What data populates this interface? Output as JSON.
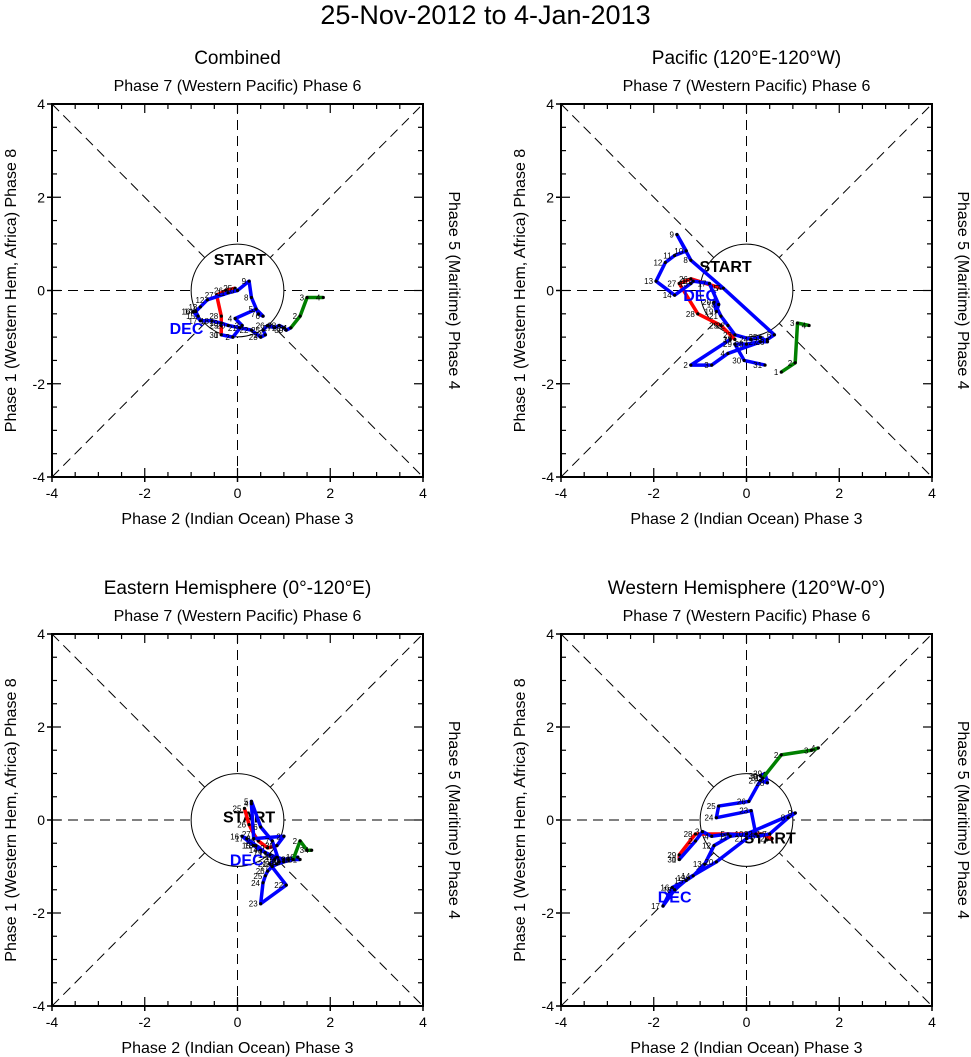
{
  "figure": {
    "title": "25-Nov-2012 to 4-Jan-2013",
    "start_label": "START",
    "month_label": "DEC"
  },
  "colors": {
    "nov": "#ff0000",
    "dec": "#0000ff",
    "jan": "#008000",
    "axes": "#000000",
    "dash": "#000000"
  },
  "chart_data": [
    {
      "type": "line",
      "title": "Combined",
      "top_label": "Phase 7 (Western Pacific) Phase 6",
      "bottom_label": "Phase 2 (Indian Ocean) Phase 3",
      "left_label": "Phase 1 (Western Hem, Africa) Phase 8",
      "right_label": "Phase 5 (Maritime) Phase 4",
      "xlim": [
        -4,
        4
      ],
      "ylim": [
        -4,
        4
      ],
      "xticks": [
        "-4",
        "-2",
        "0",
        "2",
        "4"
      ],
      "yticks": [
        "-4",
        "-2",
        "0",
        "2",
        "4"
      ],
      "start_pos": [
        0.05,
        0.5
      ],
      "dec_pos": [
        -1.1,
        -0.8
      ],
      "series": [
        {
          "name": "Nov",
          "color_key": "nov",
          "days": [
            25,
            26,
            27,
            28,
            29,
            30
          ],
          "points": [
            [
              -0.05,
              0.05
            ],
            [
              -0.25,
              0.0
            ],
            [
              -0.45,
              -0.1
            ],
            [
              -0.35,
              -0.55
            ],
            [
              -0.35,
              -0.75
            ],
            [
              -0.35,
              -0.95
            ]
          ]
        },
        {
          "name": "Dec",
          "color_key": "dec",
          "days": [
            1,
            2,
            3,
            4,
            5,
            6,
            7,
            8,
            9,
            10,
            11,
            12,
            13,
            14,
            15,
            16,
            17,
            18,
            19,
            20,
            21,
            22,
            23,
            24,
            25,
            26,
            27,
            28,
            29,
            30,
            31
          ],
          "points": [
            [
              -0.35,
              -0.95
            ],
            [
              -0.1,
              -1.0
            ],
            [
              0.1,
              -0.75
            ],
            [
              -0.05,
              -0.6
            ],
            [
              0.4,
              -0.4
            ],
            [
              0.55,
              -0.55
            ],
            [
              0.45,
              -0.5
            ],
            [
              0.3,
              -0.15
            ],
            [
              0.25,
              0.2
            ],
            [
              0.0,
              0.0
            ],
            [
              -0.2,
              -0.05
            ],
            [
              -0.65,
              -0.2
            ],
            [
              -0.8,
              -0.35
            ],
            [
              -0.9,
              -0.45
            ],
            [
              -0.85,
              -0.55
            ],
            [
              -0.95,
              -0.45
            ],
            [
              -0.8,
              -0.65
            ],
            [
              -0.55,
              -0.65
            ],
            [
              -0.35,
              -0.7
            ],
            [
              -0.2,
              -0.75
            ],
            [
              0.05,
              -0.8
            ],
            [
              0.3,
              -0.85
            ],
            [
              0.5,
              -1.0
            ],
            [
              0.6,
              -0.95
            ],
            [
              0.55,
              -0.85
            ],
            [
              0.65,
              -0.75
            ],
            [
              0.8,
              -0.8
            ],
            [
              0.9,
              -0.75
            ],
            [
              1.0,
              -0.8
            ],
            [
              1.05,
              -0.85
            ],
            [
              1.15,
              -0.8
            ]
          ]
        },
        {
          "name": "Jan",
          "color_key": "jan",
          "days": [
            1,
            2,
            3,
            4
          ],
          "points": [
            [
              1.15,
              -0.8
            ],
            [
              1.35,
              -0.55
            ],
            [
              1.5,
              -0.15
            ],
            [
              1.85,
              -0.15
            ]
          ]
        }
      ]
    },
    {
      "type": "line",
      "title": "Pacific (120°E-120°W)",
      "top_label": "Phase 7 (Western Pacific) Phase 6",
      "bottom_label": "Phase 2 (Indian Ocean) Phase 3",
      "left_label": "Phase 1 (Western Hem, Africa) Phase 8",
      "right_label": "Phase 5 (Maritime) Phase 4",
      "xlim": [
        -4,
        4
      ],
      "ylim": [
        -4,
        4
      ],
      "xticks": [
        "-4",
        "-2",
        "0",
        "2",
        "4"
      ],
      "yticks": [
        "-4",
        "-2",
        "0",
        "2",
        "4"
      ],
      "start_pos": [
        -0.45,
        0.35
      ],
      "dec_pos": [
        -1.0,
        -0.1
      ],
      "series": [
        {
          "name": "Nov",
          "color_key": "nov",
          "days": [
            25,
            26,
            27,
            28,
            29,
            30
          ],
          "points": [
            [
              -0.55,
              0.05
            ],
            [
              -1.2,
              0.25
            ],
            [
              -1.45,
              0.15
            ],
            [
              -1.05,
              -0.5
            ],
            [
              -0.55,
              -0.75
            ],
            [
              -0.25,
              -1.05
            ]
          ]
        },
        {
          "name": "Dec",
          "color_key": "dec",
          "days": [
            1,
            2,
            3,
            4,
            5,
            6,
            7,
            8,
            9,
            10,
            11,
            12,
            13,
            14,
            15,
            16,
            17,
            18,
            19,
            20,
            21,
            22,
            23,
            24,
            25,
            26,
            27,
            28,
            29,
            30,
            31
          ],
          "points": [
            [
              -0.35,
              -1.05
            ],
            [
              -1.2,
              -1.6
            ],
            [
              -0.75,
              -1.6
            ],
            [
              -0.4,
              -1.35
            ],
            [
              0.45,
              -1.05
            ],
            [
              0.6,
              -0.95
            ],
            [
              -0.5,
              0.05
            ],
            [
              -1.2,
              0.65
            ],
            [
              -1.5,
              1.2
            ],
            [
              -1.3,
              0.85
            ],
            [
              -1.55,
              0.75
            ],
            [
              -1.75,
              0.6
            ],
            [
              -1.95,
              0.2
            ],
            [
              -1.55,
              -0.1
            ],
            [
              -1.2,
              0.15
            ],
            [
              -1.15,
              0.2
            ],
            [
              -0.8,
              0.15
            ],
            [
              -0.6,
              -0.3
            ],
            [
              -0.65,
              -0.45
            ],
            [
              -0.7,
              -0.25
            ],
            [
              -0.55,
              -0.55
            ],
            [
              -0.4,
              -0.75
            ],
            [
              -0.25,
              -0.95
            ],
            [
              0.1,
              -1.05
            ],
            [
              0.3,
              -1.0
            ],
            [
              0.45,
              -1.1
            ],
            [
              0.3,
              -1.1
            ],
            [
              0.0,
              -1.15
            ],
            [
              -0.25,
              -1.15
            ],
            [
              -0.05,
              -1.5
            ],
            [
              0.4,
              -1.6
            ]
          ]
        },
        {
          "name": "Jan",
          "color_key": "jan",
          "days": [
            1,
            2,
            3,
            4
          ],
          "points": [
            [
              0.75,
              -1.75
            ],
            [
              1.05,
              -1.55
            ],
            [
              1.1,
              -0.7
            ],
            [
              1.35,
              -0.75
            ]
          ]
        }
      ]
    },
    {
      "type": "line",
      "title": "Eastern Hemisphere (0°-120°E)",
      "top_label": "Phase 7 (Western Pacific) Phase 6",
      "bottom_label": "Phase 2 (Indian Ocean) Phase 3",
      "left_label": "Phase 1 (Western Hem, Africa) Phase 8",
      "right_label": "Phase 5 (Maritime) Phase 4",
      "xlim": [
        -4,
        4
      ],
      "ylim": [
        -4,
        4
      ],
      "xticks": [
        "-4",
        "-2",
        "0",
        "2",
        "4"
      ],
      "yticks": [
        "-4",
        "-2",
        "0",
        "2",
        "4"
      ],
      "start_pos": [
        0.25,
        -0.1
      ],
      "dec_pos": [
        0.2,
        -0.85
      ],
      "series": [
        {
          "name": "Nov",
          "color_key": "nov",
          "days": [
            25,
            26,
            27,
            28,
            29,
            30
          ],
          "points": [
            [
              0.15,
              0.25
            ],
            [
              0.25,
              -0.1
            ],
            [
              0.35,
              -0.3
            ],
            [
              0.45,
              -0.45
            ],
            [
              0.65,
              -0.6
            ],
            [
              0.85,
              -0.55
            ]
          ]
        },
        {
          "name": "Dec",
          "color_key": "dec",
          "days": [
            1,
            2,
            3,
            4,
            5,
            6,
            7,
            8,
            9,
            10,
            11,
            12,
            13,
            14,
            15,
            16,
            17,
            18,
            19,
            20,
            21,
            22,
            23,
            24,
            25,
            26,
            27,
            28,
            29,
            30,
            31
          ],
          "points": [
            [
              0.85,
              -0.55
            ],
            [
              1.0,
              -0.35
            ],
            [
              0.35,
              -0.4
            ],
            [
              0.3,
              0.35
            ],
            [
              0.3,
              0.4
            ],
            [
              0.5,
              -0.15
            ],
            [
              0.75,
              -0.45
            ],
            [
              0.9,
              -0.9
            ],
            [
              1.1,
              -0.85
            ],
            [
              1.3,
              -0.8
            ],
            [
              1.0,
              -0.85
            ],
            [
              0.85,
              -0.8
            ],
            [
              0.7,
              -0.75
            ],
            [
              0.5,
              -0.65
            ],
            [
              0.35,
              -0.55
            ],
            [
              0.1,
              -0.35
            ],
            [
              0.2,
              -0.4
            ],
            [
              0.4,
              -0.55
            ],
            [
              0.6,
              -0.7
            ],
            [
              0.8,
              -0.85
            ],
            [
              0.7,
              -0.95
            ],
            [
              1.05,
              -1.4
            ],
            [
              0.5,
              -1.8
            ],
            [
              0.55,
              -1.35
            ],
            [
              0.6,
              -1.2
            ],
            [
              0.65,
              -1.1
            ],
            [
              0.75,
              -1.0
            ],
            [
              0.85,
              -0.95
            ],
            [
              1.0,
              -0.9
            ],
            [
              1.2,
              -0.85
            ],
            [
              1.35,
              -0.85
            ]
          ]
        },
        {
          "name": "Jan",
          "color_key": "jan",
          "days": [
            1,
            2,
            3,
            4
          ],
          "points": [
            [
              1.2,
              -0.85
            ],
            [
              1.35,
              -0.45
            ],
            [
              1.5,
              -0.65
            ],
            [
              1.6,
              -0.65
            ]
          ]
        }
      ]
    },
    {
      "type": "line",
      "title": "Western Hemisphere (120°W-0°)",
      "top_label": "Phase 7 (Western Pacific) Phase 6",
      "bottom_label": "Phase 2 (Indian Ocean) Phase 3",
      "left_label": "Phase 1 (Western Hem, Africa) Phase 8",
      "right_label": "Phase 5 (Maritime) Phase 4",
      "xlim": [
        -4,
        4
      ],
      "ylim": [
        -4,
        4
      ],
      "xticks": [
        "-4",
        "-2",
        "0",
        "2",
        "4"
      ],
      "yticks": [
        "-4",
        "-2",
        "0",
        "2",
        "4"
      ],
      "start_pos": [
        0.5,
        -0.55
      ],
      "dec_pos": [
        -1.55,
        -1.65
      ],
      "series": [
        {
          "name": "Nov",
          "color_key": "nov",
          "days": [
            25,
            26,
            27,
            28,
            29,
            30
          ],
          "points": [
            [
              0.3,
              -0.3
            ],
            [
              0.55,
              -0.4
            ],
            [
              0.35,
              -0.3
            ],
            [
              -1.1,
              -0.3
            ],
            [
              -1.45,
              -0.75
            ],
            [
              -1.45,
              -0.85
            ]
          ]
        },
        {
          "name": "Dec",
          "color_key": "dec",
          "days": [
            1,
            2,
            3,
            4,
            5,
            6,
            7,
            8,
            9,
            10,
            11,
            12,
            13,
            14,
            15,
            16,
            17,
            18,
            19,
            20,
            21,
            22,
            23,
            24,
            25,
            26,
            27,
            28,
            29,
            30,
            31
          ],
          "points": [
            [
              -1.45,
              -0.85
            ],
            [
              -1.1,
              -0.45
            ],
            [
              -0.95,
              -0.25
            ],
            [
              -0.75,
              -0.35
            ],
            [
              -0.4,
              -0.3
            ],
            [
              0.25,
              -0.35
            ],
            [
              0.5,
              -0.3
            ],
            [
              0.9,
              0.05
            ],
            [
              1.05,
              0.15
            ],
            [
              0.0,
              -0.3
            ],
            [
              -0.35,
              -0.35
            ],
            [
              -0.7,
              -0.55
            ],
            [
              -0.9,
              -0.95
            ],
            [
              -1.15,
              -1.2
            ],
            [
              -1.3,
              -1.3
            ],
            [
              -1.6,
              -1.45
            ],
            [
              -1.8,
              -1.85
            ],
            [
              -1.55,
              -1.5
            ],
            [
              -1.25,
              -1.25
            ],
            [
              -0.65,
              -0.9
            ],
            [
              0.0,
              -0.4
            ],
            [
              0.2,
              -0.3
            ],
            [
              0.1,
              0.2
            ],
            [
              -0.65,
              0.05
            ],
            [
              -0.6,
              0.3
            ],
            [
              0.05,
              0.4
            ],
            [
              0.3,
              0.85
            ],
            [
              0.45,
              0.8
            ],
            [
              0.4,
              1.0
            ],
            [
              0.3,
              0.95
            ],
            [
              0.35,
              0.9
            ]
          ]
        },
        {
          "name": "Jan",
          "color_key": "jan",
          "days": [
            1,
            2,
            3,
            4
          ],
          "points": [
            [
              0.35,
              0.9
            ],
            [
              0.75,
              1.4
            ],
            [
              1.4,
              1.5
            ],
            [
              1.55,
              1.55
            ]
          ]
        }
      ]
    }
  ]
}
